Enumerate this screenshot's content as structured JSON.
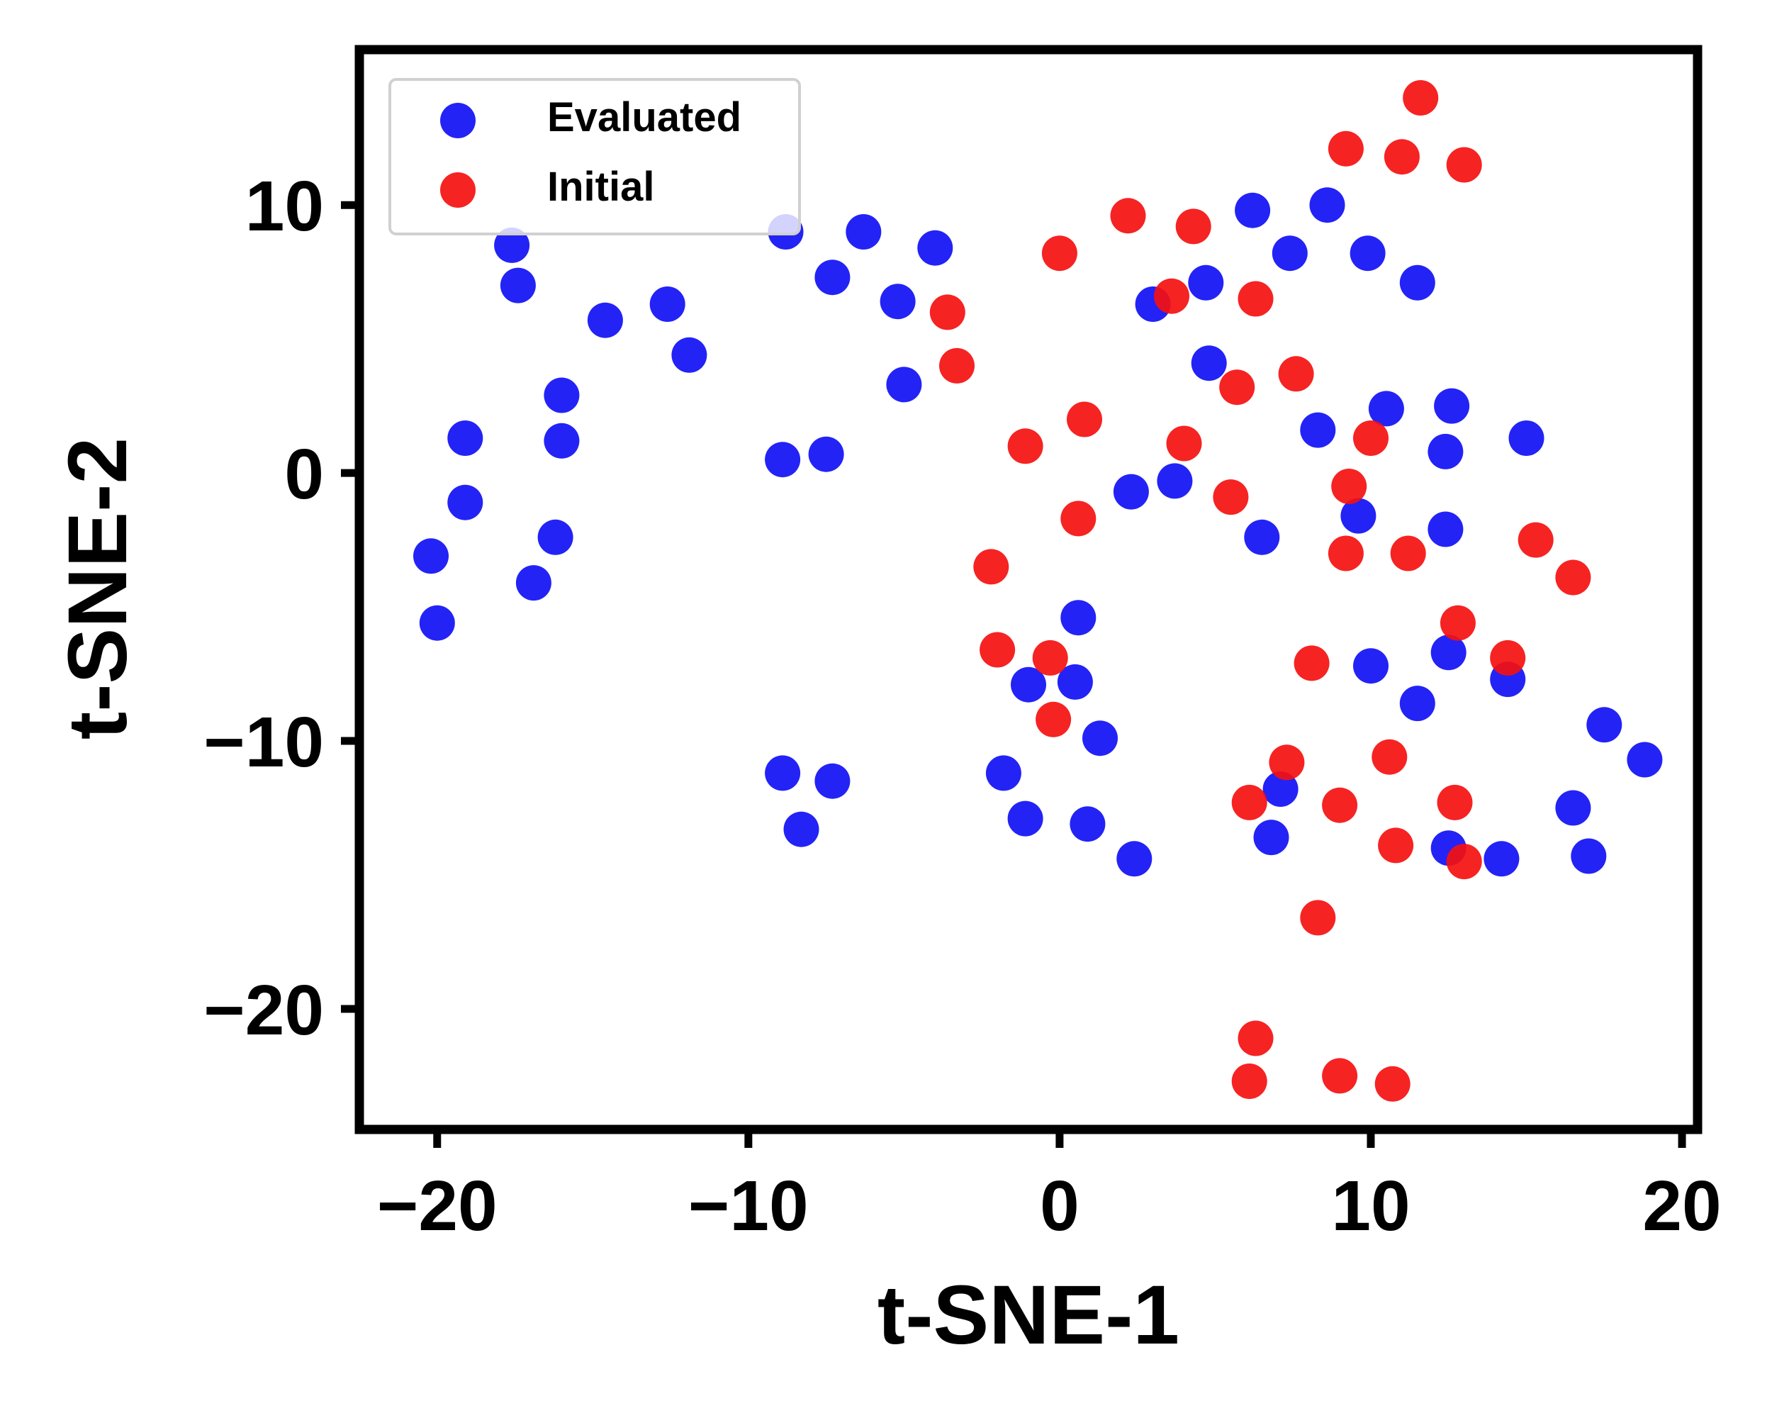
{
  "chart_data": {
    "type": "scatter",
    "title": "",
    "xlabel": "t-SNE-1",
    "ylabel": "t-SNE-2",
    "xlim": [
      -22.5,
      20.5
    ],
    "ylim": [
      -24.5,
      15.8
    ],
    "xticks": [
      -20,
      -10,
      0,
      10,
      20
    ],
    "xtick_labels": [
      "−20",
      "−10",
      "0",
      "10",
      "20"
    ],
    "yticks": [
      -20,
      -10,
      0,
      10
    ],
    "ytick_labels": [
      "−20",
      "−10",
      "0",
      "10"
    ],
    "grid": false,
    "legend_position": "top-left",
    "series": [
      {
        "name": "Evaluated",
        "color": "#1010f5",
        "points": [
          [
            -17.6,
            8.5
          ],
          [
            -17.4,
            7.0
          ],
          [
            -14.6,
            5.7
          ],
          [
            -12.6,
            6.3
          ],
          [
            -11.9,
            4.4
          ],
          [
            -8.8,
            9.0
          ],
          [
            -6.3,
            9.0
          ],
          [
            -7.3,
            7.3
          ],
          [
            -4.0,
            8.4
          ],
          [
            -5.2,
            6.4
          ],
          [
            -5.0,
            3.3
          ],
          [
            -16.0,
            2.9
          ],
          [
            -16.0,
            1.2
          ],
          [
            -19.1,
            1.3
          ],
          [
            -19.1,
            -1.1
          ],
          [
            -16.2,
            -2.4
          ],
          [
            -16.9,
            -4.1
          ],
          [
            -20.2,
            -3.1
          ],
          [
            -20.0,
            -5.6
          ],
          [
            -8.9,
            0.5
          ],
          [
            -7.5,
            0.7
          ],
          [
            -8.9,
            -11.2
          ],
          [
            -7.3,
            -11.5
          ],
          [
            -8.3,
            -13.3
          ],
          [
            6.2,
            9.8
          ],
          [
            8.6,
            10.0
          ],
          [
            7.4,
            8.2
          ],
          [
            9.9,
            8.2
          ],
          [
            11.5,
            7.1
          ],
          [
            4.7,
            7.1
          ],
          [
            3.0,
            6.3
          ],
          [
            4.8,
            4.1
          ],
          [
            10.5,
            2.4
          ],
          [
            12.6,
            2.5
          ],
          [
            8.3,
            1.6
          ],
          [
            12.4,
            0.8
          ],
          [
            15.0,
            1.3
          ],
          [
            2.3,
            -0.7
          ],
          [
            3.7,
            -0.3
          ],
          [
            9.6,
            -1.6
          ],
          [
            12.4,
            -2.1
          ],
          [
            6.5,
            -2.4
          ],
          [
            0.6,
            -5.4
          ],
          [
            12.5,
            -6.7
          ],
          [
            10.0,
            -7.2
          ],
          [
            14.4,
            -7.7
          ],
          [
            -1.0,
            -7.9
          ],
          [
            0.5,
            -7.8
          ],
          [
            11.5,
            -8.6
          ],
          [
            17.5,
            -9.4
          ],
          [
            18.8,
            -10.7
          ],
          [
            1.3,
            -9.9
          ],
          [
            -1.8,
            -11.2
          ],
          [
            -1.1,
            -12.9
          ],
          [
            0.9,
            -13.1
          ],
          [
            2.4,
            -14.4
          ],
          [
            7.1,
            -11.8
          ],
          [
            6.8,
            -13.6
          ],
          [
            12.5,
            -14.0
          ],
          [
            14.2,
            -14.4
          ],
          [
            16.5,
            -12.5
          ],
          [
            17.0,
            -14.3
          ]
        ]
      },
      {
        "name": "Initial",
        "color": "#f51010",
        "points": [
          [
            11.6,
            14.0
          ],
          [
            9.2,
            12.1
          ],
          [
            11.0,
            11.8
          ],
          [
            13.0,
            11.5
          ],
          [
            2.2,
            9.6
          ],
          [
            4.3,
            9.2
          ],
          [
            0.0,
            8.2
          ],
          [
            3.6,
            6.6
          ],
          [
            6.3,
            6.5
          ],
          [
            -3.6,
            6.0
          ],
          [
            -3.3,
            4.0
          ],
          [
            5.7,
            3.2
          ],
          [
            7.6,
            3.7
          ],
          [
            0.8,
            2.0
          ],
          [
            -1.1,
            1.0
          ],
          [
            4.0,
            1.1
          ],
          [
            10.0,
            1.3
          ],
          [
            5.5,
            -0.9
          ],
          [
            9.3,
            -0.5
          ],
          [
            0.6,
            -1.7
          ],
          [
            -2.2,
            -3.5
          ],
          [
            9.2,
            -3.0
          ],
          [
            11.2,
            -3.0
          ],
          [
            15.3,
            -2.5
          ],
          [
            16.5,
            -3.9
          ],
          [
            12.8,
            -5.6
          ],
          [
            -2.0,
            -6.6
          ],
          [
            -0.3,
            -6.9
          ],
          [
            8.1,
            -7.1
          ],
          [
            14.4,
            -6.9
          ],
          [
            -0.2,
            -9.2
          ],
          [
            7.3,
            -10.8
          ],
          [
            10.6,
            -10.6
          ],
          [
            6.1,
            -12.3
          ],
          [
            9.0,
            -12.4
          ],
          [
            12.7,
            -12.3
          ],
          [
            10.8,
            -13.9
          ],
          [
            13.0,
            -14.5
          ],
          [
            8.3,
            -16.6
          ],
          [
            6.3,
            -21.1
          ],
          [
            6.1,
            -22.7
          ],
          [
            9.0,
            -22.5
          ],
          [
            10.7,
            -22.8
          ]
        ]
      }
    ]
  }
}
